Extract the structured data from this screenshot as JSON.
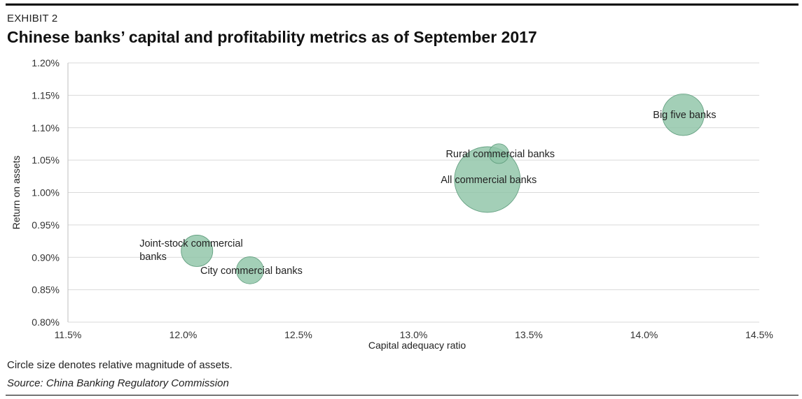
{
  "header": {
    "exhibit": "EXHIBIT 2",
    "title": "Chinese banks’ capital and profitability metrics as of September 2017"
  },
  "footer": {
    "note": "Circle size denotes relative magnitude of assets.",
    "source": "Source: China Banking Regulatory Commission"
  },
  "colors": {
    "bubble_fill": "#8fc4a7",
    "bubble_stroke": "#5e9c7c",
    "grid": "#d9d9d9"
  },
  "chart_data": {
    "type": "scatter",
    "title": "Chinese banks’ capital and profitability metrics as of September 2017",
    "xlabel": "Capital adequacy ratio",
    "ylabel": "Return on assets",
    "xlim": [
      11.5,
      14.5
    ],
    "ylim": [
      0.8,
      1.2
    ],
    "x_ticks": [
      "11.5%",
      "12.0%",
      "12.5%",
      "13.0%",
      "13.5%",
      "14.0%",
      "14.5%"
    ],
    "y_ticks": [
      "0.80%",
      "0.85%",
      "0.90%",
      "0.95%",
      "1.00%",
      "1.05%",
      "1.10%",
      "1.15%",
      "1.20%"
    ],
    "grid": "horizontal",
    "size_note": "Circle size denotes relative magnitude of assets.",
    "points": [
      {
        "label": "Joint-stock commercial banks",
        "label_lines": [
          "Joint-stock commercial",
          "banks"
        ],
        "x": 12.06,
        "y": 0.91,
        "size": 23
      },
      {
        "label": "City commercial banks",
        "label_lines": [
          "City commercial banks"
        ],
        "x": 12.29,
        "y": 0.88,
        "size": 17
      },
      {
        "label": "All commercial banks",
        "label_lines": [
          "All commercial banks"
        ],
        "x": 13.32,
        "y": 1.02,
        "size": 100
      },
      {
        "label": "Rural commercial banks",
        "label_lines": [
          "Rural commercial banks"
        ],
        "x": 13.37,
        "y": 1.06,
        "size": 9
      },
      {
        "label": "Big five banks",
        "label_lines": [
          "Big five banks"
        ],
        "x": 14.17,
        "y": 1.12,
        "size": 40
      }
    ]
  }
}
